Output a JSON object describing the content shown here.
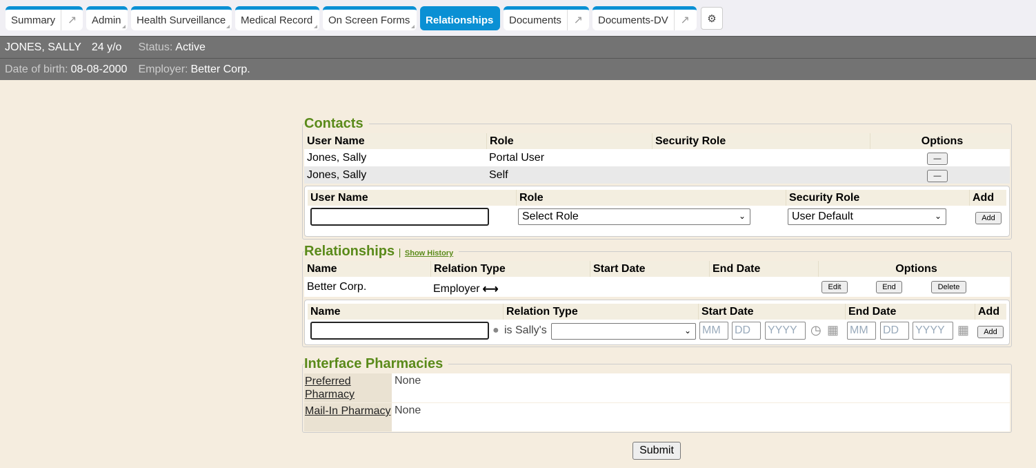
{
  "tabs": [
    {
      "label": "Summary",
      "external": true
    },
    {
      "label": "Admin",
      "dropdown": true
    },
    {
      "label": "Health Surveillance",
      "dropdown": true
    },
    {
      "label": "Medical Record",
      "dropdown": true
    },
    {
      "label": "On Screen Forms",
      "dropdown": true
    },
    {
      "label": "Relationships",
      "active": true
    },
    {
      "label": "Documents",
      "external": true
    },
    {
      "label": "Documents-DV",
      "external": true
    }
  ],
  "settings_icon": "gears-icon",
  "patient": {
    "name": "JONES, SALLY",
    "age": "24 y/o",
    "status_label": "Status:",
    "status": "Active",
    "dob_label": "Date of birth:",
    "dob": "08-08-2000",
    "employer_label": "Employer:",
    "employer": "Better Corp."
  },
  "contacts": {
    "title": "Contacts",
    "columns": [
      "User Name",
      "Role",
      "Security Role",
      "Options"
    ],
    "rows": [
      {
        "user": "Jones, Sally",
        "role": "Portal User",
        "security": "",
        "option": "—"
      },
      {
        "user": "Jones, Sally",
        "role": "Self",
        "security": "",
        "option": "—"
      }
    ],
    "add_form": {
      "columns": [
        "User Name",
        "Role",
        "Security Role",
        "Add"
      ],
      "user_value": "",
      "role_selected": "Select Role",
      "security_selected": "User Default",
      "add_label": "Add"
    }
  },
  "relationships": {
    "title": "Relationships",
    "show_history": "Show History",
    "columns": [
      "Name",
      "Relation Type",
      "Start Date",
      "End Date",
      "Options"
    ],
    "rows": [
      {
        "name": "Better Corp.",
        "type": "Employer",
        "start": "",
        "end": "",
        "edit": "Edit",
        "end_btn": "End",
        "delete": "Delete"
      }
    ],
    "add_form": {
      "columns": [
        "Name",
        "Relation Type",
        "Start Date",
        "End Date",
        "Add"
      ],
      "name_value": "",
      "is_label": "is Sally's",
      "type_selected": "",
      "mm": "MM",
      "dd": "DD",
      "yyyy": "YYYY",
      "add_label": "Add"
    }
  },
  "pharmacies": {
    "title": "Interface Pharmacies",
    "rows": [
      {
        "label": "Preferred Pharmacy",
        "value": "None"
      },
      {
        "label": "Mail-In Pharmacy",
        "value": "None"
      }
    ]
  },
  "submit_label": "Submit",
  "colors": {
    "accent": "#0a90d4",
    "section_title": "#5a8a1a",
    "header_bar": "#737373",
    "background": "#f5eddf"
  }
}
